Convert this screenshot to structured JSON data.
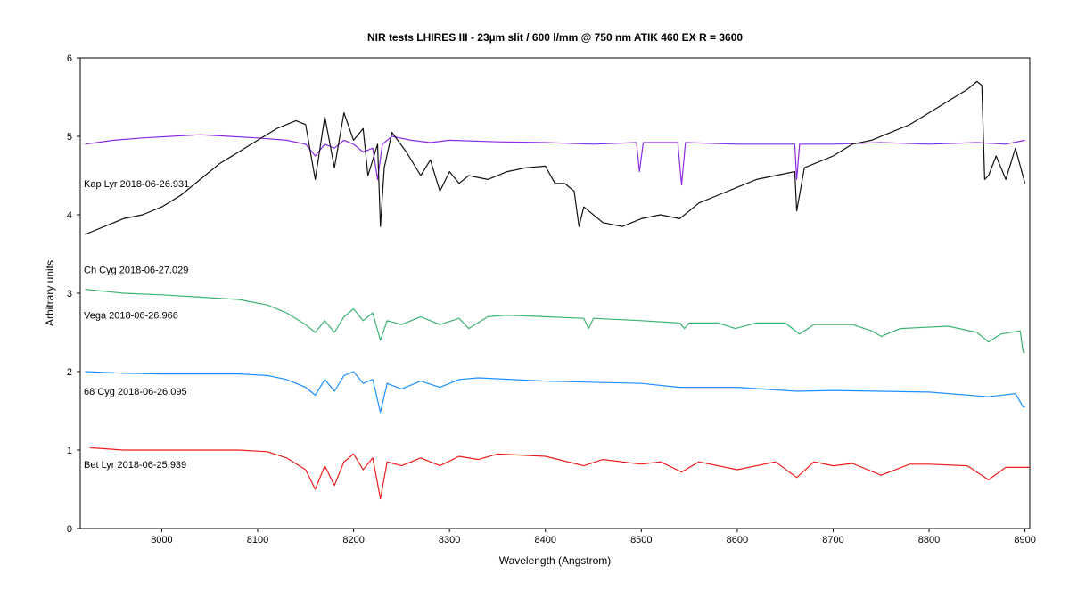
{
  "chart_data": {
    "type": "line",
    "title": "NIR tests  LHIRES III - 23µm slit / 600 l/mm @ 750 nm ATIK 460 EX R = 3600",
    "xlabel": "Wavelength (Angstrom)",
    "ylabel": "Arbitrary units",
    "xlim": [
      7915,
      8905
    ],
    "ylim": [
      0,
      6
    ],
    "xticks": [
      8000,
      8100,
      8200,
      8300,
      8400,
      8500,
      8600,
      8700,
      8800,
      8900
    ],
    "yticks": [
      0,
      1,
      2,
      3,
      4,
      5,
      6
    ],
    "grid": false,
    "legend": "inline labels at left",
    "series": [
      {
        "name": "Kap Lyr  2018-06-26.931",
        "color": "#8a2be2",
        "x": [
          7920,
          7950,
          7980,
          8010,
          8040,
          8070,
          8100,
          8130,
          8150,
          8160,
          8170,
          8180,
          8190,
          8200,
          8210,
          8220,
          8225,
          8230,
          8240,
          8260,
          8280,
          8300,
          8350,
          8400,
          8450,
          8495,
          8498,
          8502,
          8520,
          8538,
          8542,
          8546,
          8600,
          8660,
          8662,
          8665,
          8700,
          8750,
          8800,
          8850,
          8880,
          8900
        ],
        "values": [
          4.9,
          4.95,
          4.98,
          5.0,
          5.02,
          5.0,
          4.98,
          4.95,
          4.9,
          4.75,
          4.9,
          4.85,
          4.95,
          4.9,
          4.8,
          4.85,
          4.45,
          4.9,
          5.0,
          4.95,
          4.92,
          4.95,
          4.93,
          4.92,
          4.9,
          4.92,
          4.55,
          4.92,
          4.92,
          4.92,
          4.38,
          4.92,
          4.9,
          4.9,
          4.45,
          4.9,
          4.9,
          4.92,
          4.9,
          4.92,
          4.9,
          4.95
        ]
      },
      {
        "name": "Ch Cyg  2018-06-27.029",
        "color": "#111111",
        "x": [
          7920,
          7940,
          7960,
          7980,
          8000,
          8020,
          8040,
          8060,
          8080,
          8100,
          8120,
          8140,
          8150,
          8160,
          8170,
          8180,
          8190,
          8200,
          8210,
          8215,
          8225,
          8228,
          8232,
          8240,
          8255,
          8270,
          8280,
          8290,
          8300,
          8310,
          8320,
          8340,
          8360,
          8380,
          8400,
          8410,
          8420,
          8430,
          8435,
          8440,
          8460,
          8480,
          8500,
          8520,
          8540,
          8560,
          8580,
          8600,
          8620,
          8640,
          8660,
          8662,
          8670,
          8700,
          8720,
          8740,
          8760,
          8780,
          8800,
          8820,
          8840,
          8850,
          8855,
          8858,
          8862,
          8870,
          8880,
          8890,
          8900
        ],
        "values": [
          3.75,
          3.85,
          3.95,
          4.0,
          4.1,
          4.25,
          4.45,
          4.65,
          4.8,
          4.95,
          5.1,
          5.2,
          5.15,
          4.45,
          5.25,
          4.6,
          5.3,
          4.95,
          5.1,
          4.5,
          4.9,
          3.85,
          4.6,
          5.05,
          4.8,
          4.5,
          4.7,
          4.3,
          4.55,
          4.4,
          4.5,
          4.45,
          4.55,
          4.6,
          4.62,
          4.4,
          4.4,
          4.3,
          3.85,
          4.1,
          3.9,
          3.85,
          3.95,
          4.0,
          3.95,
          4.15,
          4.25,
          4.35,
          4.45,
          4.5,
          4.55,
          4.05,
          4.6,
          4.75,
          4.9,
          4.95,
          5.05,
          5.15,
          5.3,
          5.45,
          5.6,
          5.7,
          5.65,
          4.45,
          4.5,
          4.75,
          4.45,
          4.85,
          4.4
        ]
      },
      {
        "name": "Vega  2018-06-26.966",
        "color": "#3cb371",
        "x": [
          7920,
          7960,
          8000,
          8040,
          8080,
          8110,
          8130,
          8150,
          8160,
          8170,
          8180,
          8190,
          8200,
          8210,
          8220,
          8228,
          8235,
          8250,
          8270,
          8290,
          8310,
          8320,
          8340,
          8360,
          8400,
          8440,
          8445,
          8450,
          8500,
          8540,
          8545,
          8550,
          8580,
          8598,
          8620,
          8650,
          8665,
          8680,
          8720,
          8740,
          8750,
          8770,
          8820,
          8850,
          8862,
          8875,
          8895,
          8898,
          8900
        ],
        "values": [
          3.05,
          3.0,
          2.98,
          2.95,
          2.92,
          2.85,
          2.75,
          2.6,
          2.5,
          2.65,
          2.5,
          2.7,
          2.8,
          2.65,
          2.75,
          2.4,
          2.65,
          2.6,
          2.7,
          2.6,
          2.68,
          2.55,
          2.7,
          2.72,
          2.7,
          2.68,
          2.55,
          2.68,
          2.65,
          2.62,
          2.55,
          2.62,
          2.62,
          2.55,
          2.62,
          2.62,
          2.48,
          2.6,
          2.6,
          2.52,
          2.45,
          2.55,
          2.58,
          2.5,
          2.38,
          2.48,
          2.52,
          2.25,
          2.25
        ]
      },
      {
        "name": "68 Cyg  2018-06-26.095",
        "color": "#1e90ff",
        "x": [
          7920,
          7960,
          8000,
          8040,
          8080,
          8110,
          8130,
          8150,
          8160,
          8170,
          8180,
          8190,
          8200,
          8210,
          8220,
          8228,
          8235,
          8250,
          8270,
          8290,
          8310,
          8330,
          8400,
          8500,
          8540,
          8600,
          8662,
          8700,
          8750,
          8800,
          8862,
          8890,
          8898,
          8900
        ],
        "values": [
          2.0,
          1.98,
          1.97,
          1.97,
          1.97,
          1.95,
          1.9,
          1.8,
          1.7,
          1.9,
          1.75,
          1.95,
          2.0,
          1.85,
          1.9,
          1.48,
          1.85,
          1.78,
          1.88,
          1.8,
          1.9,
          1.92,
          1.88,
          1.85,
          1.8,
          1.8,
          1.75,
          1.76,
          1.75,
          1.74,
          1.68,
          1.72,
          1.55,
          1.55
        ]
      },
      {
        "name": "Bet Lyr  2018-06-25.939",
        "color": "#ee1c1c",
        "x": [
          7925,
          7960,
          8000,
          8040,
          8080,
          8110,
          8130,
          8150,
          8160,
          8170,
          8180,
          8190,
          8200,
          8210,
          8220,
          8228,
          8235,
          8250,
          8270,
          8290,
          8310,
          8330,
          8350,
          8400,
          8440,
          8460,
          8500,
          8520,
          8542,
          8560,
          8600,
          8640,
          8662,
          8680,
          8700,
          8720,
          8750,
          8780,
          8800,
          8840,
          8862,
          8880,
          8905
        ],
        "values": [
          1.03,
          1.0,
          1.0,
          1.0,
          1.0,
          0.98,
          0.9,
          0.75,
          0.5,
          0.8,
          0.55,
          0.85,
          0.95,
          0.75,
          0.9,
          0.38,
          0.85,
          0.8,
          0.9,
          0.8,
          0.92,
          0.88,
          0.95,
          0.92,
          0.8,
          0.88,
          0.82,
          0.85,
          0.72,
          0.85,
          0.75,
          0.85,
          0.65,
          0.85,
          0.8,
          0.83,
          0.68,
          0.82,
          0.82,
          0.8,
          0.62,
          0.78,
          0.78
        ]
      }
    ]
  }
}
